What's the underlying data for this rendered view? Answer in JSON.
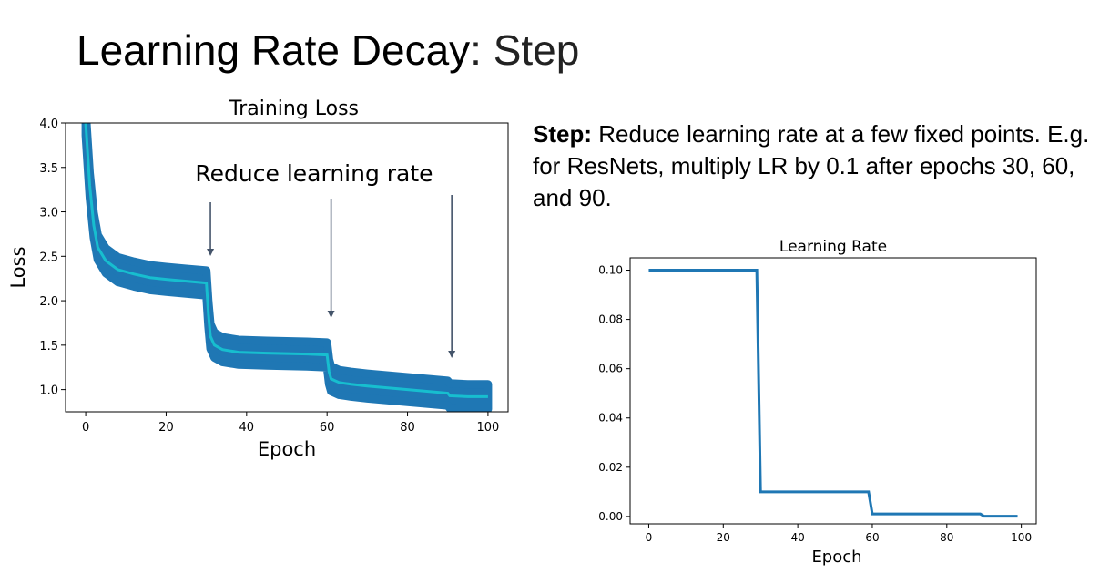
{
  "slide": {
    "title_main": "Learning Rate Decay",
    "title_sep": ": ",
    "title_sub": "Step",
    "desc_bold": "Step:",
    "desc_text": " Reduce learning rate at a few fixed points. E.g. for ResNets, multiply LR by 0.1 after epochs 30, 60, and 90."
  },
  "colors": {
    "band": "#1f77b4",
    "mean": "#17becf",
    "line": "#1f77b4",
    "arrow": "#44546a"
  },
  "chart_data": [
    {
      "type": "line",
      "title": "Training Loss",
      "xlabel": "Epoch",
      "ylabel": "Loss",
      "xlim": [
        -5,
        105
      ],
      "ylim": [
        0.75,
        4.0
      ],
      "xticks": [
        0,
        20,
        40,
        60,
        80,
        100
      ],
      "yticks": [
        1.0,
        1.5,
        2.0,
        2.5,
        3.0,
        3.5,
        4.0
      ],
      "series": [
        {
          "x": [
            0,
            1,
            2,
            3,
            5,
            8,
            12,
            16,
            20,
            25,
            30,
            30.5,
            31,
            32,
            34,
            38,
            45,
            55,
            60,
            60.5,
            61,
            63,
            66,
            70,
            80,
            90,
            90.5,
            95,
            100
          ],
          "y": [
            4.0,
            3.3,
            2.85,
            2.6,
            2.45,
            2.35,
            2.3,
            2.26,
            2.24,
            2.22,
            2.2,
            1.85,
            1.6,
            1.5,
            1.45,
            1.42,
            1.41,
            1.4,
            1.39,
            1.2,
            1.12,
            1.08,
            1.06,
            1.04,
            1.0,
            0.96,
            0.93,
            0.92,
            0.92
          ]
        }
      ],
      "band_halfwidth": 0.14,
      "annotation": {
        "text": "Reduce learning rate",
        "arrow_epochs": [
          31,
          61,
          91
        ]
      }
    },
    {
      "type": "line",
      "title": "Learning Rate",
      "xlabel": "Epoch",
      "ylabel": "",
      "xlim": [
        -5,
        104
      ],
      "ylim": [
        -0.003,
        0.105
      ],
      "xticks": [
        0,
        20,
        40,
        60,
        80,
        100
      ],
      "ytick_values": [
        0.0,
        0.02,
        0.04,
        0.06,
        0.08,
        0.1
      ],
      "ytick_labels": [
        "0.00",
        "0.02",
        "0.04",
        "0.06",
        "0.08",
        "0.10"
      ],
      "series": [
        {
          "x": [
            0,
            29,
            30,
            59,
            60,
            89,
            90,
            99
          ],
          "y": [
            0.1,
            0.1,
            0.01,
            0.01,
            0.001,
            0.001,
            0.0001,
            0.0001
          ]
        }
      ]
    }
  ]
}
